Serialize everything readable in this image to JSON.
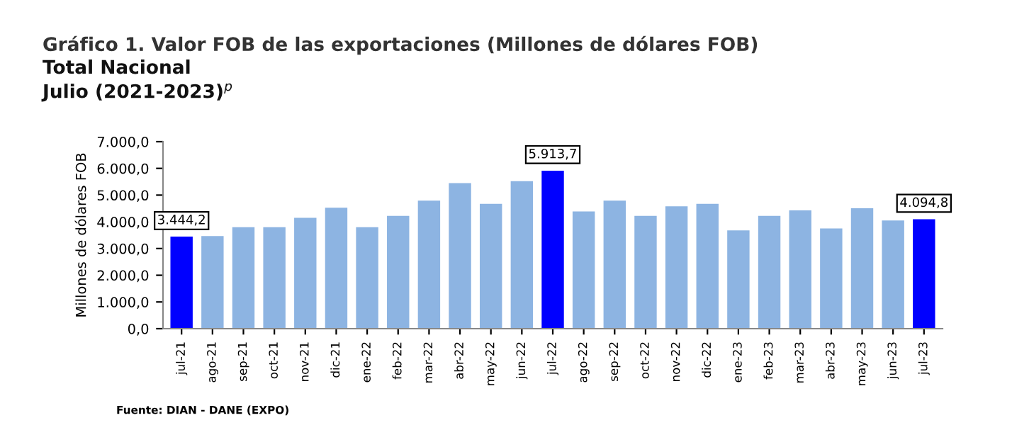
{
  "chart_data": {
    "type": "bar",
    "title": "Gráfico 1. Valor FOB de las exportaciones (Millones de dólares FOB)",
    "subtitle": "Total Nacional\nJulio (2021-2023)$^{p}$",
    "ylabel": "Millones de dólares FOB",
    "categories": [
      "jul-21",
      "ago-21",
      "sep-21",
      "oct-21",
      "nov-21",
      "dic-21",
      "ene-22",
      "feb-22",
      "mar-22",
      "abr-22",
      "may-22",
      "jun-22",
      "jul-22",
      "ago-22",
      "sep-22",
      "oct-22",
      "nov-22",
      "dic-22",
      "ene-23",
      "feb-23",
      "mar-23",
      "abr-23",
      "may-23",
      "jun-23",
      "jul-23"
    ],
    "values": [
      3444.2,
      3470,
      3800,
      3800,
      4150,
      4530,
      3800,
      4220,
      4790,
      5450,
      4670,
      5520,
      5913.7,
      4390,
      4790,
      4220,
      4580,
      4670,
      3680,
      4220,
      4430,
      3750,
      4510,
      4050,
      4094.8
    ],
    "colors": [
      "#0000ff",
      "#8db4e2",
      "#8db4e2",
      "#8db4e2",
      "#8db4e2",
      "#8db4e2",
      "#8db4e2",
      "#8db4e2",
      "#8db4e2",
      "#8db4e2",
      "#8db4e2",
      "#8db4e2",
      "#0000ff",
      "#8db4e2",
      "#8db4e2",
      "#8db4e2",
      "#8db4e2",
      "#8db4e2",
      "#8db4e2",
      "#8db4e2",
      "#8db4e2",
      "#8db4e2",
      "#8db4e2",
      "#8db4e2",
      "#0000ff"
    ],
    "value_labels": [
      "3.444,2",
      null,
      null,
      null,
      null,
      null,
      null,
      null,
      null,
      null,
      null,
      null,
      "5.913,7",
      null,
      null,
      null,
      null,
      null,
      null,
      null,
      null,
      null,
      null,
      null,
      "4.094,8"
    ],
    "ylim": [
      0,
      7000
    ],
    "yticks": [
      {
        "value": 0,
        "label": "0,0"
      },
      {
        "value": 1000,
        "label": "1.000,0"
      },
      {
        "value": 2000,
        "label": "2.000,0"
      },
      {
        "value": 3000,
        "label": "3.000,0"
      },
      {
        "value": 4000,
        "label": "4.000,0"
      },
      {
        "value": 5000,
        "label": "5.000,0"
      },
      {
        "value": 6000,
        "label": "6.000,0"
      },
      {
        "value": 7000,
        "label": "7.000,0"
      }
    ],
    "grid": false,
    "annotations": [
      "Fuente: DIAN - DANE (EXPO)"
    ]
  }
}
